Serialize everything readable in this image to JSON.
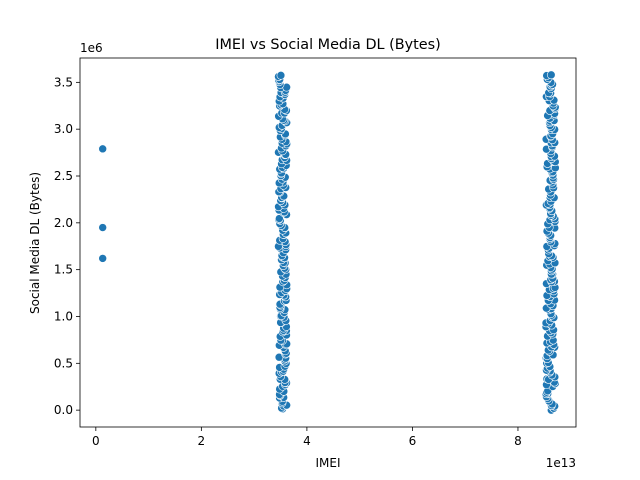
{
  "chart_data": {
    "type": "scatter",
    "title": "IMEI vs Social Media DL (Bytes)",
    "xlabel": "IMEI",
    "ylabel": "Social Media DL (Bytes)",
    "x_offset_label": "1e13",
    "y_offset_label": "1e6",
    "xlim": [
      -0.3,
      9.1
    ],
    "ylim": [
      -0.18,
      3.76
    ],
    "x_ticks": [
      0,
      2,
      4,
      6,
      8
    ],
    "x_tick_labels": [
      "0",
      "2",
      "4",
      "6",
      "8"
    ],
    "y_ticks": [
      0.0,
      0.5,
      1.0,
      1.5,
      2.0,
      2.5,
      3.0,
      3.5
    ],
    "y_tick_labels": [
      "0.0",
      "0.5",
      "1.0",
      "1.5",
      "2.0",
      "2.5",
      "3.0",
      "3.5"
    ],
    "x_units_note": "x values in units of 1e13",
    "y_units_note": "y values in units of 1e6",
    "marker_color": "#1f77b4",
    "grid": false,
    "series": [
      {
        "points": [
          {
            "x": 0.13,
            "y": 2.79
          },
          {
            "x": 0.13,
            "y": 1.95
          },
          {
            "x": 0.13,
            "y": 1.62
          }
        ]
      },
      {
        "x_center": 3.54,
        "x_spread": 0.08,
        "y_min": 0.0,
        "y_max": 3.58,
        "point_count": 180
      },
      {
        "x_center": 8.62,
        "x_spread": 0.09,
        "y_min": 0.0,
        "y_max": 3.58,
        "point_count": 180
      }
    ]
  }
}
